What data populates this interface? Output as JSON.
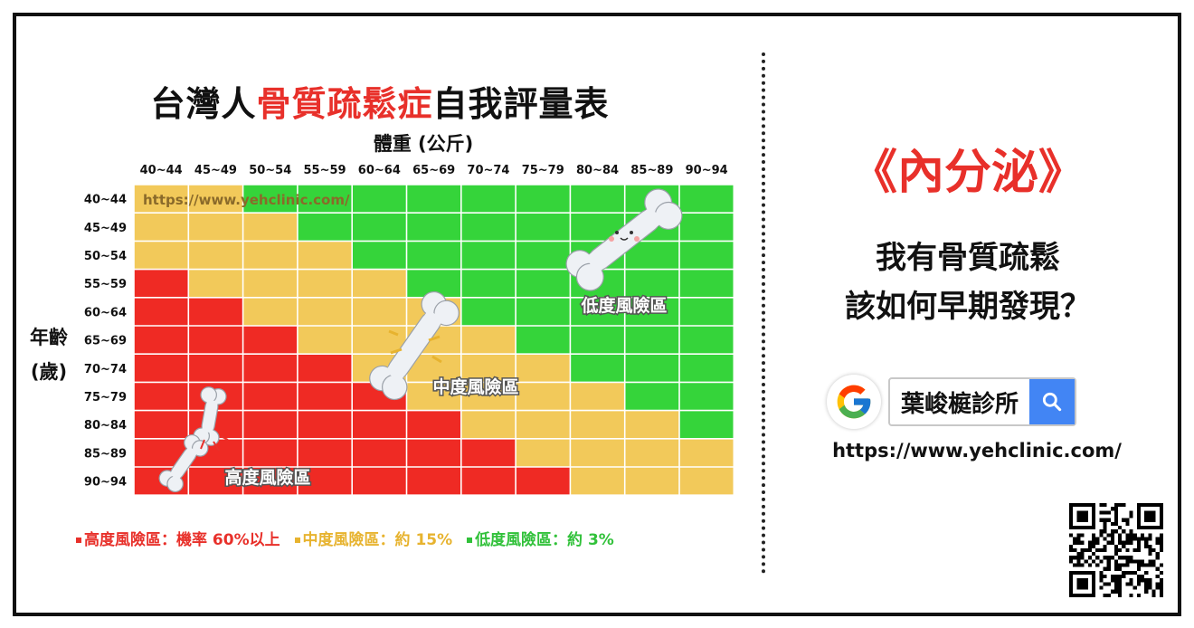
{
  "left": {
    "title_prefix": "台灣人",
    "title_highlight": "骨質疏鬆症",
    "title_suffix": "自我評量表",
    "watermark_url": "https://www.yehclinic.com/",
    "legend": [
      {
        "label": "高度風險區：機率 60%以上",
        "color": "#e8302a"
      },
      {
        "label": "中度風險區：約 15%",
        "color": "#e7b32f"
      },
      {
        "label": "低度風險區：約 3%",
        "color": "#31c13a"
      }
    ]
  },
  "chart_data": {
    "type": "heatmap",
    "title": "台灣人骨質疏鬆症自我評量表",
    "xlabel": "體重 (公斤)",
    "ylabel_line1": "年齡",
    "ylabel_line2": "(歲)",
    "x_categories": [
      "40~44",
      "45~49",
      "50~54",
      "55~59",
      "60~64",
      "65~69",
      "70~74",
      "75~79",
      "80~84",
      "85~89",
      "90~94"
    ],
    "y_categories": [
      "40~44",
      "45~49",
      "50~54",
      "55~59",
      "60~64",
      "65~69",
      "70~74",
      "75~79",
      "80~84",
      "85~89",
      "90~94"
    ],
    "level_labels": {
      "H": "高度風險區",
      "M": "中度風險區",
      "L": "低度風險區"
    },
    "level_colors": {
      "H": "#ef2a24",
      "M": "#f2c95a",
      "L": "#35d43a"
    },
    "cells": [
      [
        "M",
        "M",
        "L",
        "L",
        "L",
        "L",
        "L",
        "L",
        "L",
        "L",
        "L"
      ],
      [
        "M",
        "M",
        "M",
        "L",
        "L",
        "L",
        "L",
        "L",
        "L",
        "L",
        "L"
      ],
      [
        "M",
        "M",
        "M",
        "M",
        "L",
        "L",
        "L",
        "L",
        "L",
        "L",
        "L"
      ],
      [
        "H",
        "M",
        "M",
        "M",
        "M",
        "L",
        "L",
        "L",
        "L",
        "L",
        "L"
      ],
      [
        "H",
        "H",
        "M",
        "M",
        "M",
        "M",
        "L",
        "L",
        "L",
        "L",
        "L"
      ],
      [
        "H",
        "H",
        "H",
        "M",
        "M",
        "M",
        "M",
        "L",
        "L",
        "L",
        "L"
      ],
      [
        "H",
        "H",
        "H",
        "H",
        "M",
        "M",
        "M",
        "M",
        "L",
        "L",
        "L"
      ],
      [
        "H",
        "H",
        "H",
        "H",
        "H",
        "M",
        "M",
        "M",
        "M",
        "L",
        "L"
      ],
      [
        "H",
        "H",
        "H",
        "H",
        "H",
        "H",
        "M",
        "M",
        "M",
        "M",
        "L"
      ],
      [
        "H",
        "H",
        "H",
        "H",
        "H",
        "H",
        "H",
        "M",
        "M",
        "M",
        "M"
      ],
      [
        "H",
        "H",
        "H",
        "H",
        "H",
        "H",
        "H",
        "H",
        "M",
        "M",
        "M"
      ]
    ]
  },
  "right": {
    "category": "《內分泌》",
    "subtitle_line1": "我有骨質疏鬆",
    "subtitle_line2": "該如何早期發現？",
    "search_text": "葉峻榳診所",
    "url": "https://www.yehclinic.com/"
  },
  "icons": {
    "google": "google-logo-icon",
    "search": "search-icon",
    "bone": "bone-icon",
    "qr": "qr-code-icon"
  }
}
